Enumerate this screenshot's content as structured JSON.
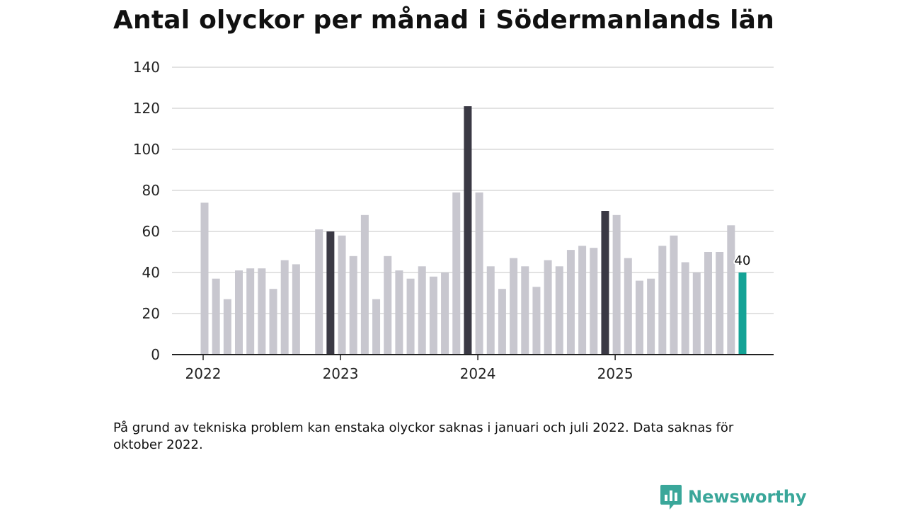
{
  "title": "Antal olyckor per månad i Södermanlands län",
  "footnote": "På grund av tekniska problem kan enstaka olyckor saknas i januari och juli 2022. Data saknas för oktober 2022.",
  "brand": {
    "name": "Newsworthy",
    "icon": "bar-chart-speech-icon"
  },
  "colors": {
    "bar": "#c8c7cf",
    "highlight": "#3a3944",
    "latest": "#14a396",
    "grid": "#d9d9d9",
    "axis": "#222222",
    "brand": "#3aa79a"
  },
  "chart_data": {
    "type": "bar",
    "title": "Antal olyckor per månad i Södermanlands län",
    "xlabel": "",
    "ylabel": "",
    "ylim": [
      0,
      140
    ],
    "yticks": [
      0,
      20,
      40,
      60,
      80,
      100,
      120,
      140
    ],
    "grid": true,
    "xticks": [
      {
        "label": "2022",
        "index": 0
      },
      {
        "label": "2023",
        "index": 12
      },
      {
        "label": "2024",
        "index": 24
      },
      {
        "label": "2025",
        "index": 36
      }
    ],
    "categories": [
      "2022-01",
      "2022-02",
      "2022-03",
      "2022-04",
      "2022-05",
      "2022-06",
      "2022-07",
      "2022-08",
      "2022-09",
      "2022-10",
      "2022-11",
      "2022-12",
      "2023-01",
      "2023-02",
      "2023-03",
      "2023-04",
      "2023-05",
      "2023-06",
      "2023-07",
      "2023-08",
      "2023-09",
      "2023-10",
      "2023-11",
      "2023-12",
      "2024-01",
      "2024-02",
      "2024-03",
      "2024-04",
      "2024-05",
      "2024-06",
      "2024-07",
      "2024-08",
      "2024-09",
      "2024-10",
      "2024-11",
      "2024-12",
      "2025-01",
      "2025-02",
      "2025-03",
      "2025-04",
      "2025-05",
      "2025-06",
      "2025-07",
      "2025-08",
      "2025-09",
      "2025-10",
      "2025-11",
      "2025-12"
    ],
    "values": [
      74,
      37,
      27,
      41,
      42,
      42,
      32,
      46,
      44,
      null,
      61,
      60,
      58,
      48,
      68,
      27,
      48,
      41,
      37,
      43,
      38,
      40,
      79,
      121,
      79,
      43,
      32,
      47,
      43,
      33,
      46,
      43,
      51,
      53,
      52,
      70,
      68,
      47,
      36,
      37,
      53,
      58,
      45,
      40,
      50,
      50,
      63,
      40
    ],
    "highlight_indices": [
      11,
      23,
      35
    ],
    "latest_index": 47,
    "latest_label": "40"
  }
}
